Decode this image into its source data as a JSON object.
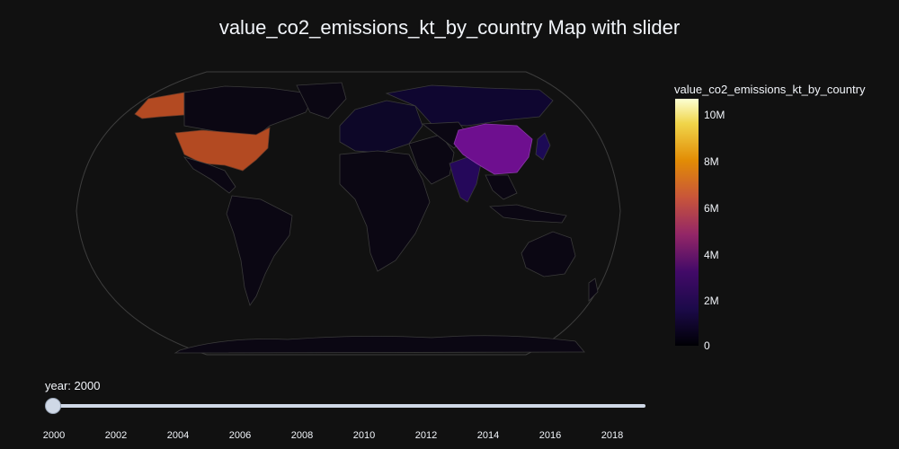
{
  "title": "value_co2_emissions_kt_by_country Map with slider",
  "colorbar": {
    "title": "value_co2_emissions_kt_by_country",
    "ticks": [
      "0",
      "2M",
      "4M",
      "6M",
      "8M",
      "10M"
    ],
    "scale": [
      "#0d0887",
      "#46039f",
      "#7201a8",
      "#9c179e",
      "#bd3786",
      "#d8576b",
      "#ed7953",
      "#fb9f3a",
      "#fdca26",
      "#f0f921"
    ]
  },
  "slider": {
    "label": "year: 2000",
    "years": [
      "2000",
      "2002",
      "2004",
      "2006",
      "2008",
      "2010",
      "2012",
      "2014",
      "2016",
      "2018"
    ]
  },
  "colors": {
    "background": "#111111",
    "land_default": "#0b0713",
    "border": "#3a3a3a",
    "usa": "#b34a22",
    "china": "#6e0f8f",
    "india": "#25085a",
    "japan": "#1c0a55",
    "russia": "#0f0630"
  },
  "chart_data": {
    "type": "choropleth",
    "year": 2000,
    "highlighted": [
      {
        "country": "United States",
        "approx_value": 5700000
      },
      {
        "country": "China",
        "approx_value": 3400000
      },
      {
        "country": "India",
        "approx_value": 1000000
      },
      {
        "country": "Japan",
        "approx_value": 1200000
      }
    ],
    "zmin": 0,
    "zmax": 10700000
  }
}
